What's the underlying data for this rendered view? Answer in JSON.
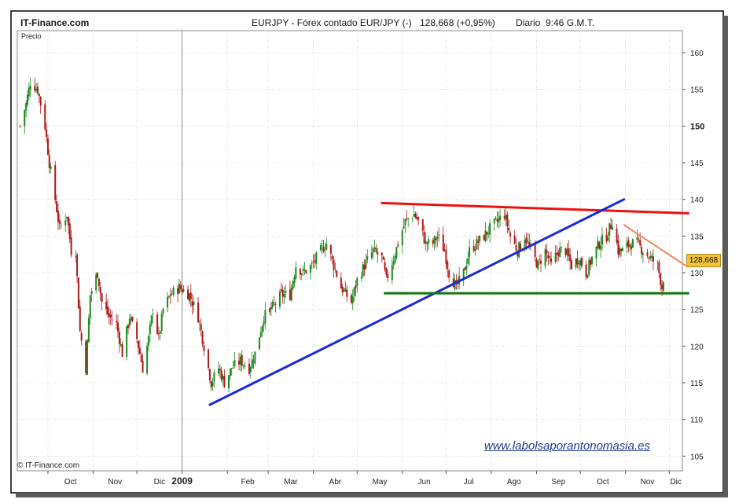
{
  "header": {
    "brand": "IT-Finance.com",
    "title": "EURJPY - Fórex contado EUR/JPY (-)",
    "last": "128,668 (+0,95%)",
    "period": "Diario",
    "time": "9:46 G.M.T."
  },
  "panel_label": "Precio",
  "last_price_tag": "128,668",
  "watermark_url": "www.labolsaporantonomasia.es",
  "copyright": "© IT-Finance.com",
  "colors": {
    "up": "#1c8a1c",
    "down": "#b01818",
    "resistance": "#ee1111",
    "uptrend": "#1a2bdd",
    "support": "#117711",
    "short_trend": "#f08850",
    "grid": "#bfbfbf",
    "price_tag": "#f2c23a"
  },
  "chart_data": {
    "type": "candlestick",
    "y_axis": {
      "min": 103,
      "max": 163,
      "ticks": [
        105,
        110,
        115,
        120,
        125,
        130,
        135,
        140,
        145,
        150,
        155,
        160
      ],
      "side": "right"
    },
    "x_axis": {
      "start": "2008-09-10",
      "end": "2009-12-10",
      "labels": [
        {
          "label": "Oct",
          "date": "2008-10-01"
        },
        {
          "label": "Nov",
          "date": "2008-11-01"
        },
        {
          "label": "Dic",
          "date": "2008-12-01"
        },
        {
          "label": "2009",
          "date": "2009-01-01",
          "bold": true
        },
        {
          "label": "Feb",
          "date": "2009-02-01"
        },
        {
          "label": "Mar",
          "date": "2009-03-01"
        },
        {
          "label": "Abr",
          "date": "2009-04-01"
        },
        {
          "label": "May",
          "date": "2009-05-01"
        },
        {
          "label": "Jun",
          "date": "2009-06-01"
        },
        {
          "label": "Jul",
          "date": "2009-07-01"
        },
        {
          "label": "Ago",
          "date": "2009-08-01"
        },
        {
          "label": "Sep",
          "date": "2009-09-01"
        },
        {
          "label": "Oct",
          "date": "2009-10-01"
        },
        {
          "label": "Nov",
          "date": "2009-11-01"
        },
        {
          "label": "Dic",
          "date": "2009-12-01"
        }
      ]
    },
    "grid": true,
    "price_path": [
      [
        "2008-09-12",
        150
      ],
      [
        "2008-09-16",
        153
      ],
      [
        "2008-09-19",
        156
      ],
      [
        "2008-09-24",
        155
      ],
      [
        "2008-09-29",
        150
      ],
      [
        "2008-10-02",
        145
      ],
      [
        "2008-10-06",
        140
      ],
      [
        "2008-10-09",
        136
      ],
      [
        "2008-10-14",
        138
      ],
      [
        "2008-10-17",
        133
      ],
      [
        "2008-10-20",
        133
      ],
      [
        "2008-10-23",
        122
      ],
      [
        "2008-10-27",
        117
      ],
      [
        "2008-10-30",
        127
      ],
      [
        "2008-11-04",
        130
      ],
      [
        "2008-11-07",
        126
      ],
      [
        "2008-11-12",
        124
      ],
      [
        "2008-11-17",
        123
      ],
      [
        "2008-11-21",
        119
      ],
      [
        "2008-11-26",
        124
      ],
      [
        "2008-12-01",
        121
      ],
      [
        "2008-12-05",
        117
      ],
      [
        "2008-12-09",
        121
      ],
      [
        "2008-12-12",
        125
      ],
      [
        "2008-12-16",
        121
      ],
      [
        "2008-12-19",
        125
      ],
      [
        "2008-12-24",
        127
      ],
      [
        "2008-12-30",
        128
      ],
      [
        "2009-01-06",
        127
      ],
      [
        "2009-01-12",
        124
      ],
      [
        "2009-01-16",
        120
      ],
      [
        "2009-01-21",
        115
      ],
      [
        "2009-01-26",
        117
      ],
      [
        "2009-01-30",
        115
      ],
      [
        "2009-02-04",
        117
      ],
      [
        "2009-02-10",
        118
      ],
      [
        "2009-02-16",
        117
      ],
      [
        "2009-02-20",
        119
      ],
      [
        "2009-02-26",
        124
      ],
      [
        "2009-03-03",
        125
      ],
      [
        "2009-03-10",
        127
      ],
      [
        "2009-03-16",
        127
      ],
      [
        "2009-03-20",
        131
      ],
      [
        "2009-03-25",
        130
      ],
      [
        "2009-03-31",
        131
      ],
      [
        "2009-04-06",
        133
      ],
      [
        "2009-04-10",
        134
      ],
      [
        "2009-04-15",
        131
      ],
      [
        "2009-04-20",
        128
      ],
      [
        "2009-04-27",
        126
      ],
      [
        "2009-05-01",
        129
      ],
      [
        "2009-05-06",
        131
      ],
      [
        "2009-05-12",
        133
      ],
      [
        "2009-05-18",
        132
      ],
      [
        "2009-05-21",
        129
      ],
      [
        "2009-05-26",
        132
      ],
      [
        "2009-05-29",
        134
      ],
      [
        "2009-06-03",
        137
      ],
      [
        "2009-06-09",
        138
      ],
      [
        "2009-06-12",
        137
      ],
      [
        "2009-06-17",
        134
      ],
      [
        "2009-06-22",
        134
      ],
      [
        "2009-06-25",
        135
      ],
      [
        "2009-06-30",
        133
      ],
      [
        "2009-07-03",
        130
      ],
      [
        "2009-07-08",
        128
      ],
      [
        "2009-07-13",
        130
      ],
      [
        "2009-07-17",
        133
      ],
      [
        "2009-07-22",
        134
      ],
      [
        "2009-07-27",
        135
      ],
      [
        "2009-07-31",
        136
      ],
      [
        "2009-08-05",
        137
      ],
      [
        "2009-08-10",
        138
      ],
      [
        "2009-08-14",
        135
      ],
      [
        "2009-08-19",
        133
      ],
      [
        "2009-08-24",
        135
      ],
      [
        "2009-08-28",
        133
      ],
      [
        "2009-09-02",
        131
      ],
      [
        "2009-09-07",
        133
      ],
      [
        "2009-09-11",
        131
      ],
      [
        "2009-09-16",
        133
      ],
      [
        "2009-09-21",
        133
      ],
      [
        "2009-09-25",
        131
      ],
      [
        "2009-09-30",
        132
      ],
      [
        "2009-10-05",
        130
      ],
      [
        "2009-10-09",
        132
      ],
      [
        "2009-10-14",
        134
      ],
      [
        "2009-10-19",
        135
      ],
      [
        "2009-10-23",
        137
      ],
      [
        "2009-10-27",
        133
      ],
      [
        "2009-10-30",
        133
      ],
      [
        "2009-11-04",
        134
      ],
      [
        "2009-11-09",
        134
      ],
      [
        "2009-11-13",
        133
      ],
      [
        "2009-11-18",
        132
      ],
      [
        "2009-11-23",
        131
      ],
      [
        "2009-11-26",
        128
      ],
      [
        "2009-11-27",
        128.7
      ]
    ],
    "trendlines": [
      {
        "role": "resistance",
        "color": "#ee1111",
        "points": [
          [
            "2009-05-18",
            139.5
          ],
          [
            "2009-12-14",
            138.1
          ]
        ]
      },
      {
        "role": "uptrend",
        "color": "#1a2bdd",
        "points": [
          [
            "2009-01-20",
            112
          ],
          [
            "2009-10-31",
            140
          ]
        ]
      },
      {
        "role": "support",
        "color": "#117711",
        "points": [
          [
            "2009-05-20",
            127.2
          ],
          [
            "2009-12-14",
            127.2
          ]
        ]
      },
      {
        "role": "short_downtrend",
        "color": "#f08850",
        "points": [
          [
            "2009-10-31",
            136.5
          ],
          [
            "2009-12-12",
            131
          ]
        ]
      }
    ]
  }
}
